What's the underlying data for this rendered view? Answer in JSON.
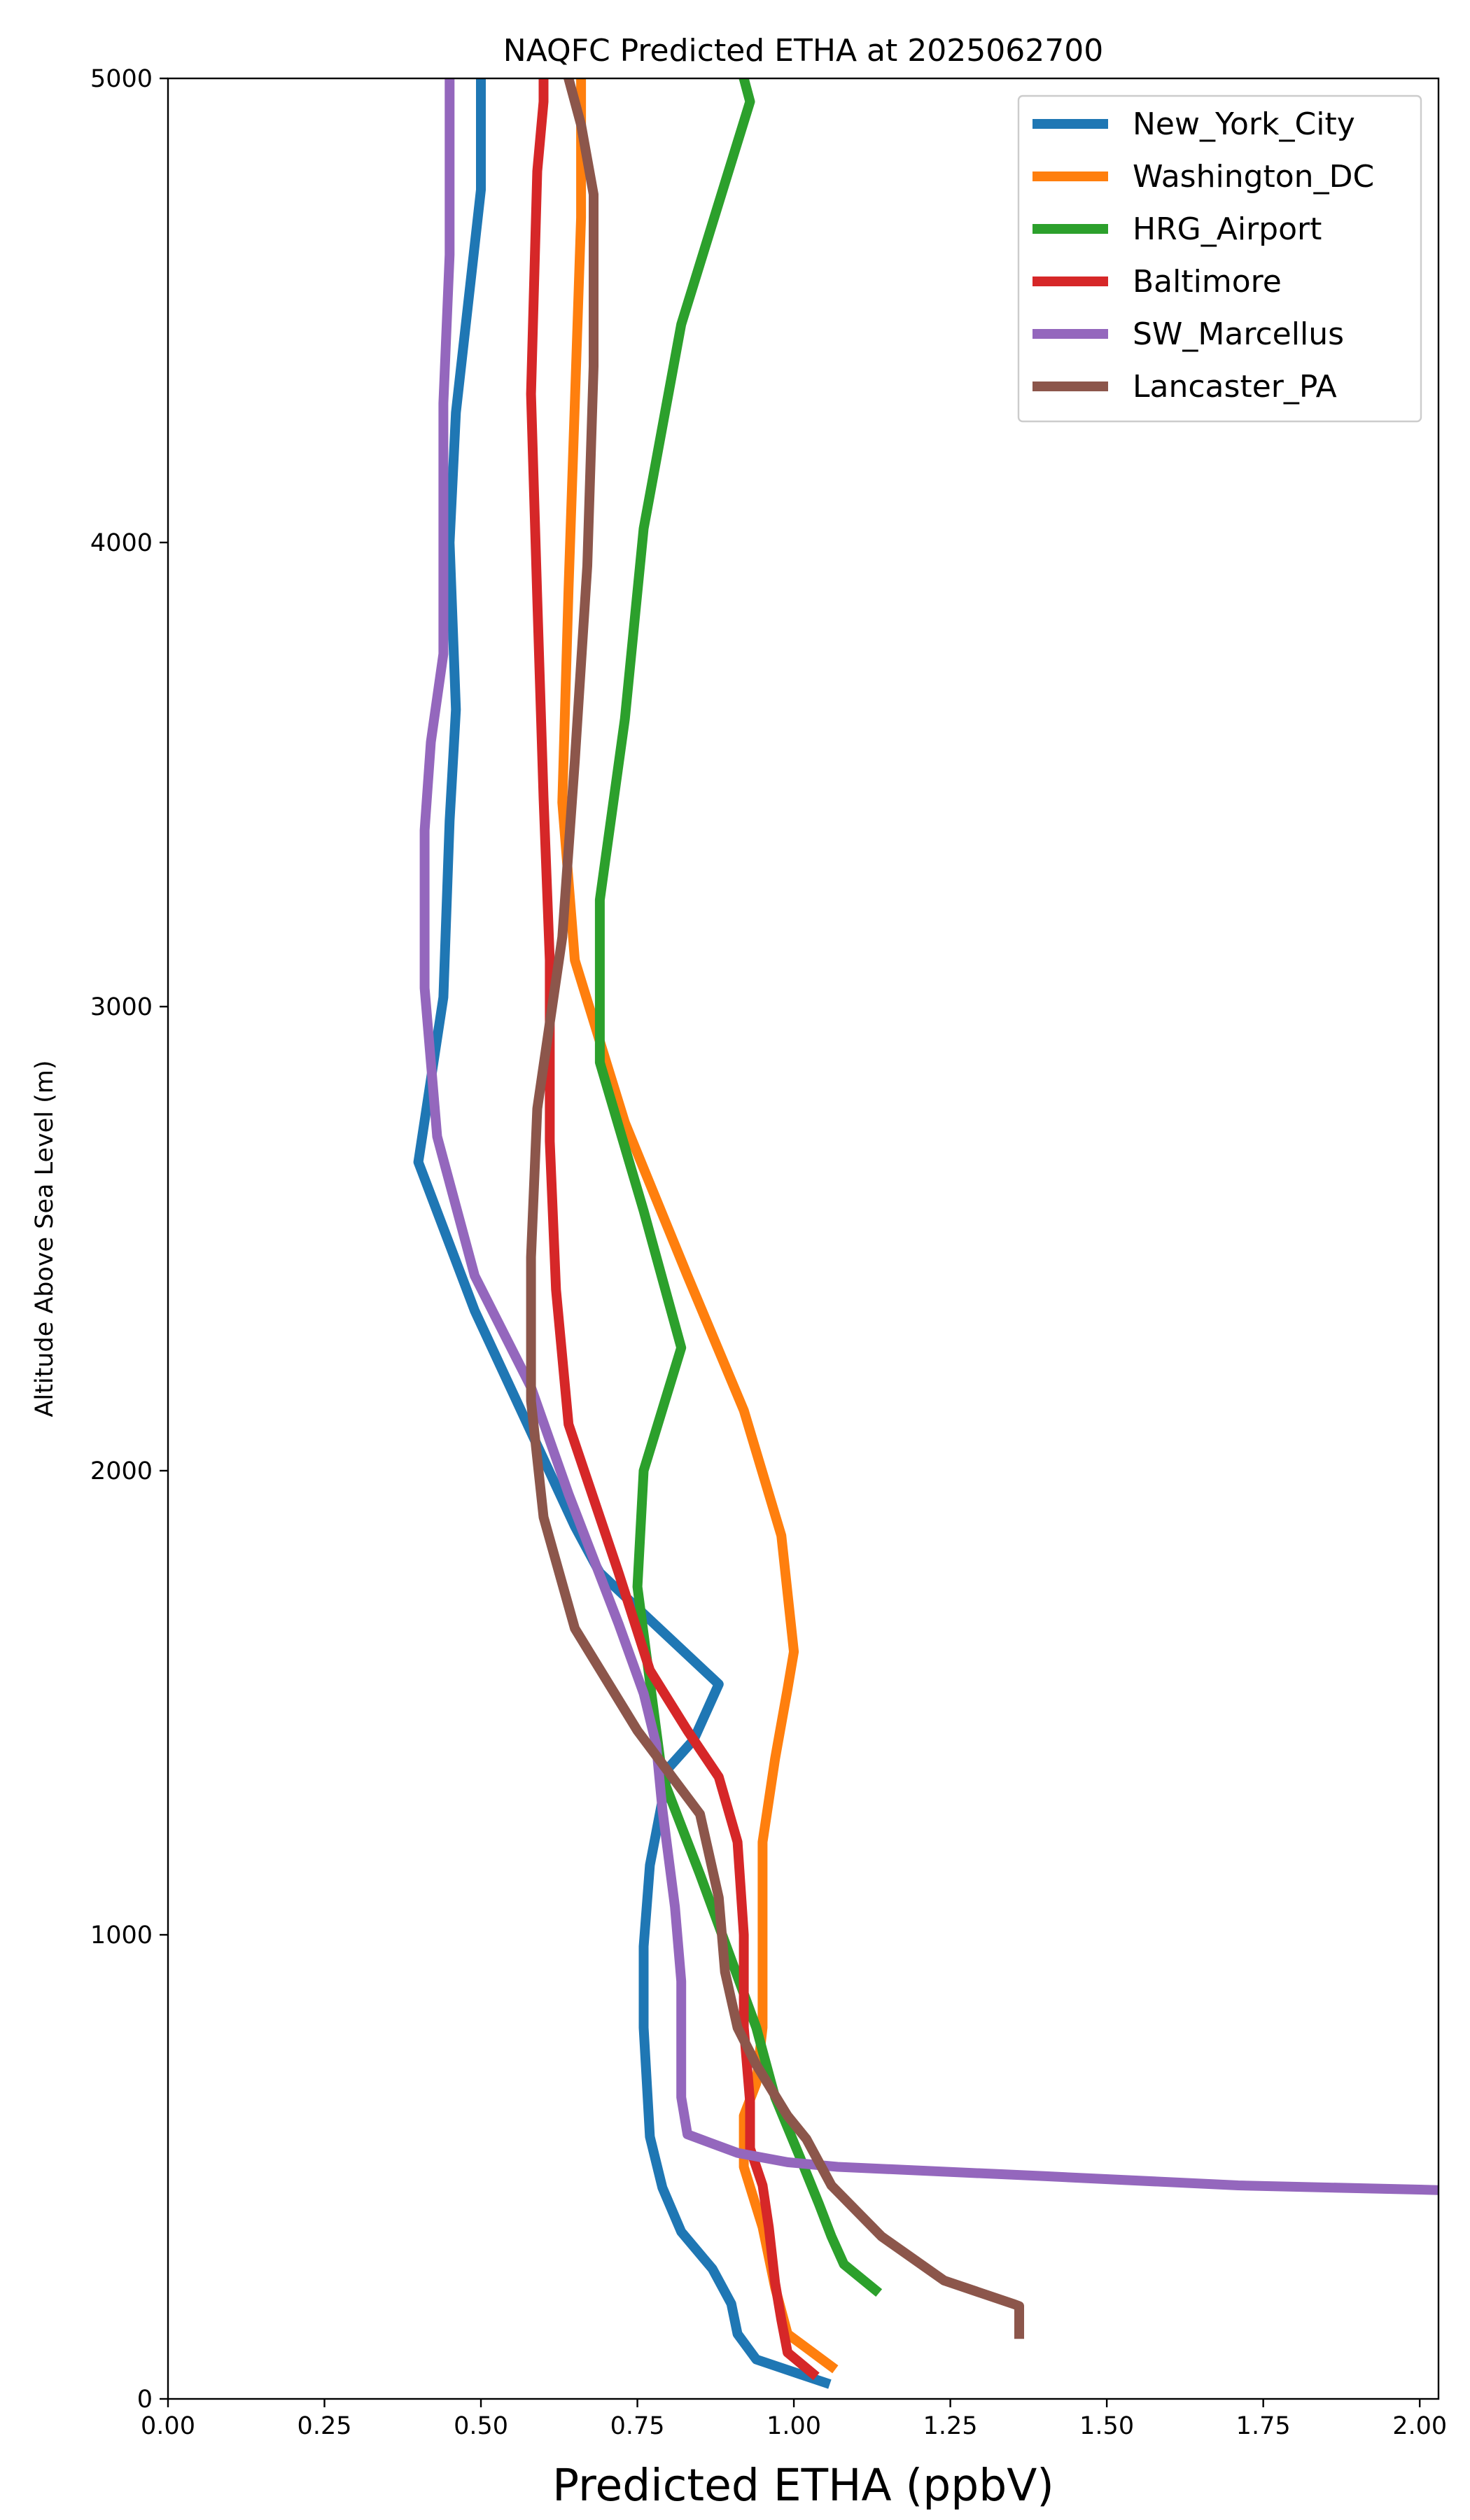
{
  "chart_data": {
    "type": "line",
    "title": "NAQFC Predicted ETHA at 2025062700",
    "xlabel": "Predicted ETHA (ppbV)",
    "ylabel": "Altitude Above Sea Level (m)",
    "xlim": [
      0.0,
      2.03
    ],
    "ylim": [
      0,
      5000
    ],
    "xticks": [
      "0.00",
      "0.25",
      "0.50",
      "0.75",
      "1.00",
      "1.25",
      "1.50",
      "1.75",
      "2.00"
    ],
    "xtick_values": [
      0.0,
      0.25,
      0.5,
      0.75,
      1.0,
      1.25,
      1.5,
      1.75,
      2.0
    ],
    "yticks": [
      "0",
      "1000",
      "2000",
      "3000",
      "4000",
      "5000"
    ],
    "ytick_values": [
      0,
      1000,
      2000,
      3000,
      4000,
      5000
    ],
    "grid": false,
    "legend_position": "top-right",
    "series": [
      {
        "name": "New_York_City",
        "color": "#1f77b4",
        "x": [
          1.05,
          0.94,
          0.91,
          0.9,
          0.87,
          0.82,
          0.79,
          0.77,
          0.76,
          0.76,
          0.77,
          0.79,
          0.8,
          0.84,
          0.88,
          0.69,
          0.65,
          0.49,
          0.4,
          0.44,
          0.45,
          0.46,
          0.45,
          0.46,
          0.5,
          0.5
        ],
        "y": [
          35,
          85,
          140,
          205,
          280,
          360,
          455,
          565,
          800,
          975,
          1150,
          1290,
          1360,
          1420,
          1540,
          1780,
          1880,
          2345,
          2665,
          3020,
          3400,
          3640,
          4000,
          4280,
          4760,
          5000
        ]
      },
      {
        "name": "Washington_DC",
        "color": "#ff7f0e",
        "x": [
          1.06,
          0.99,
          0.97,
          0.95,
          0.92,
          0.92,
          0.94,
          0.95,
          0.95,
          0.95,
          0.97,
          0.99,
          1.0,
          0.98,
          0.92,
          0.83,
          0.73,
          0.65,
          0.63,
          0.64,
          0.65,
          0.66,
          0.66
        ],
        "y": [
          70,
          140,
          240,
          370,
          500,
          610,
          680,
          800,
          990,
          1200,
          1380,
          1530,
          1610,
          1860,
          2130,
          2420,
          2750,
          3100,
          3440,
          3900,
          4300,
          4700,
          5000
        ]
      },
      {
        "name": "HRG_Airport",
        "color": "#2ca02c",
        "x": [
          1.13,
          1.08,
          1.06,
          1.04,
          1.01,
          0.97,
          0.94,
          0.85,
          0.79,
          0.75,
          0.76,
          0.82,
          0.76,
          0.69,
          0.69,
          0.73,
          0.76,
          0.82,
          0.93,
          0.92
        ],
        "y": [
          235,
          290,
          350,
          420,
          520,
          650,
          800,
          1130,
          1340,
          1750,
          2000,
          2265,
          2560,
          2880,
          3230,
          3620,
          4030,
          4470,
          4950,
          5000
        ]
      },
      {
        "name": "Baltimore",
        "color": "#d62728",
        "x": [
          1.03,
          0.99,
          0.98,
          0.97,
          0.96,
          0.95,
          0.93,
          0.93,
          0.92,
          0.92,
          0.91,
          0.88,
          0.83,
          0.77,
          0.72,
          0.64,
          0.62,
          0.61,
          0.61,
          0.6,
          0.59,
          0.58,
          0.59,
          0.6,
          0.6
        ],
        "y": [
          55,
          100,
          170,
          250,
          370,
          460,
          540,
          640,
          800,
          1000,
          1200,
          1340,
          1440,
          1570,
          1780,
          2100,
          2390,
          2710,
          3100,
          3450,
          3880,
          4320,
          4800,
          4950,
          5000
        ]
      },
      {
        "name": "SW_Marcellus",
        "color": "#9467bd",
        "x": [
          2.03,
          1.71,
          1.4,
          1.07,
          0.99,
          0.91,
          0.83,
          0.82,
          0.82,
          0.82,
          0.81,
          0.79,
          0.78,
          0.76,
          0.72,
          0.64,
          0.58,
          0.49,
          0.43,
          0.41,
          0.41,
          0.42,
          0.44,
          0.44,
          0.44,
          0.45,
          0.45
        ],
        "y": [
          450,
          460,
          480,
          500,
          510,
          530,
          570,
          650,
          820,
          900,
          1060,
          1270,
          1410,
          1520,
          1670,
          1950,
          2180,
          2420,
          2720,
          3040,
          3380,
          3570,
          3760,
          4000,
          4300,
          4620,
          5000
        ]
      },
      {
        "name": "Lancaster_PA",
        "color": "#8c564b",
        "x": [
          1.36,
          1.36,
          1.35,
          1.24,
          1.14,
          1.06,
          1.02,
          0.99,
          0.94,
          0.91,
          0.89,
          0.88,
          0.85,
          0.75,
          0.65,
          0.6,
          0.58,
          0.58,
          0.59,
          0.63,
          0.65,
          0.67,
          0.68,
          0.68,
          0.66,
          0.64
        ],
        "y": [
          140,
          200,
          205,
          255,
          350,
          460,
          560,
          610,
          720,
          800,
          920,
          1080,
          1260,
          1440,
          1660,
          1900,
          2150,
          2460,
          2780,
          3150,
          3530,
          3950,
          4380,
          4750,
          4900,
          5000
        ]
      }
    ]
  }
}
